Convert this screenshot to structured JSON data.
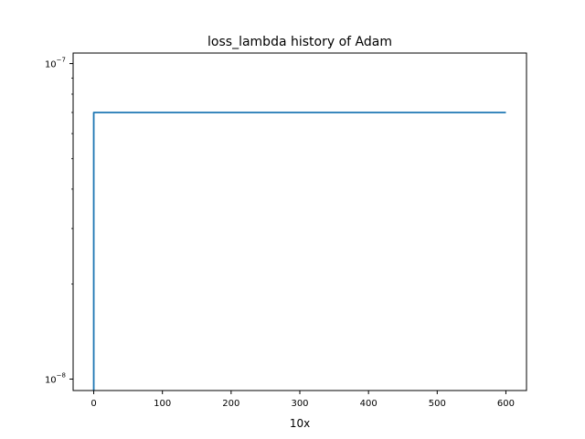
{
  "chart_data": {
    "type": "line",
    "title": "loss_lambda history of Adam",
    "xlabel": "10x",
    "ylabel": "",
    "yscale": "log",
    "grid": false,
    "xlim": [
      -30,
      630
    ],
    "ylim": [
      9.2e-09,
      1.08e-07
    ],
    "x_ticks": [
      0,
      100,
      200,
      300,
      400,
      500,
      600
    ],
    "x_tick_labels": [
      "0",
      "100",
      "200",
      "300",
      "400",
      "500",
      "600"
    ],
    "y_ticks": [
      1e-08,
      1e-07
    ],
    "y_tick_labels": [
      {
        "base": "10",
        "exp": "−8"
      },
      {
        "base": "10",
        "exp": "−7"
      }
    ],
    "series": [
      {
        "color": "#1f77b4",
        "x": [
          0,
          0,
          600
        ],
        "y": [
          9.2e-09,
          7e-08,
          7e-08
        ]
      }
    ]
  }
}
